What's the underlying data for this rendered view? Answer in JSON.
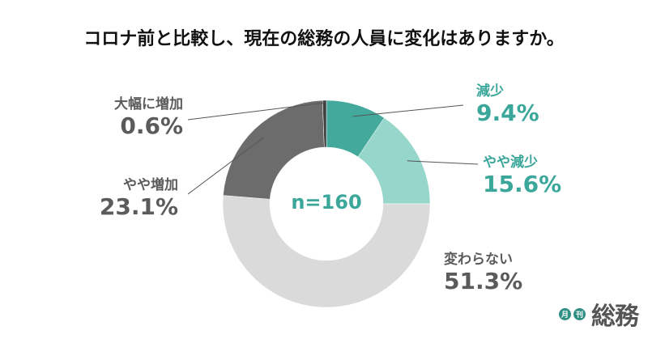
{
  "title": "コロナ前と比較し、現在の総務の人員に変化はありますか。",
  "chart_data": {
    "type": "pie",
    "variant": "donut",
    "title": "コロナ前と比較し、現在の総務の人員に変化はありますか。",
    "center_label": "n=160",
    "slices": [
      {
        "label": "減少",
        "value": 9.4,
        "value_text": "9.4%",
        "color": "#42a99c"
      },
      {
        "label": "やや減少",
        "value": 15.6,
        "value_text": "15.6%",
        "color": "#97d6cb"
      },
      {
        "label": "変わらない",
        "value": 51.3,
        "value_text": "51.3%",
        "color": "#dadada"
      },
      {
        "label": "やや増加",
        "value": 23.1,
        "value_text": "23.1%",
        "color": "#6c6c6c"
      },
      {
        "label": "大幅に増加",
        "value": 0.6,
        "value_text": "0.6%",
        "color": "#3f3f3f"
      }
    ]
  },
  "logo": {
    "badge1": "月",
    "badge2": "刊",
    "text": "総務"
  }
}
